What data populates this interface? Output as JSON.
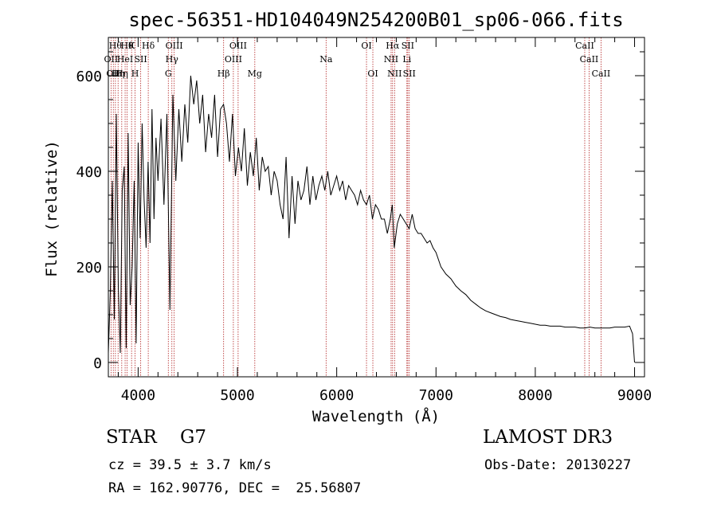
{
  "chart_data": {
    "type": "line",
    "title": "spec-56351-HD104049N254200B01_sp06-066.fits",
    "xlabel": "Wavelength (Å)",
    "ylabel": "Flux (relative)",
    "xlim": [
      3700,
      9100
    ],
    "ylim": [
      -30,
      680
    ],
    "x_ticks": [
      4000,
      5000,
      6000,
      7000,
      8000,
      9000
    ],
    "y_ticks": [
      0,
      200,
      400,
      600
    ],
    "series": [
      {
        "name": "flux",
        "x": [
          3700,
          3720,
          3740,
          3760,
          3780,
          3800,
          3820,
          3840,
          3860,
          3880,
          3900,
          3920,
          3940,
          3960,
          3980,
          4000,
          4020,
          4040,
          4060,
          4080,
          4100,
          4120,
          4140,
          4160,
          4180,
          4200,
          4230,
          4260,
          4290,
          4320,
          4350,
          4380,
          4410,
          4440,
          4470,
          4500,
          4530,
          4560,
          4590,
          4620,
          4650,
          4680,
          4710,
          4740,
          4770,
          4800,
          4830,
          4860,
          4890,
          4920,
          4950,
          4980,
          5010,
          5040,
          5070,
          5100,
          5130,
          5160,
          5190,
          5220,
          5250,
          5280,
          5310,
          5340,
          5370,
          5400,
          5430,
          5460,
          5490,
          5520,
          5550,
          5580,
          5610,
          5640,
          5670,
          5700,
          5730,
          5760,
          5790,
          5820,
          5850,
          5880,
          5910,
          5940,
          5970,
          6000,
          6030,
          6060,
          6090,
          6120,
          6150,
          6180,
          6210,
          6240,
          6270,
          6300,
          6330,
          6360,
          6390,
          6420,
          6450,
          6480,
          6510,
          6540,
          6560,
          6580,
          6610,
          6640,
          6670,
          6700,
          6730,
          6760,
          6790,
          6820,
          6850,
          6880,
          6910,
          6940,
          6970,
          7000,
          7050,
          7100,
          7150,
          7200,
          7250,
          7300,
          7350,
          7400,
          7450,
          7500,
          7550,
          7600,
          7650,
          7700,
          7750,
          7800,
          7850,
          7900,
          7950,
          8000,
          8050,
          8100,
          8150,
          8200,
          8250,
          8300,
          8350,
          8400,
          8450,
          8500,
          8550,
          8600,
          8650,
          8700,
          8750,
          8800,
          8850,
          8900,
          8950,
          8980,
          9000
        ],
        "y": [
          20,
          150,
          380,
          90,
          520,
          160,
          20,
          360,
          410,
          30,
          480,
          120,
          200,
          380,
          40,
          460,
          260,
          500,
          340,
          240,
          420,
          250,
          530,
          300,
          470,
          380,
          510,
          330,
          520,
          110,
          560,
          380,
          530,
          420,
          540,
          460,
          600,
          540,
          590,
          500,
          560,
          440,
          520,
          470,
          560,
          430,
          530,
          540,
          500,
          420,
          520,
          390,
          450,
          400,
          490,
          370,
          440,
          390,
          470,
          360,
          430,
          400,
          410,
          350,
          400,
          380,
          330,
          300,
          430,
          260,
          390,
          290,
          380,
          340,
          360,
          410,
          330,
          390,
          340,
          370,
          390,
          360,
          400,
          350,
          370,
          390,
          360,
          380,
          340,
          370,
          360,
          350,
          330,
          360,
          340,
          330,
          350,
          300,
          330,
          320,
          300,
          300,
          270,
          300,
          330,
          240,
          290,
          310,
          300,
          290,
          280,
          310,
          280,
          270,
          270,
          260,
          250,
          255,
          240,
          230,
          200,
          185,
          175,
          160,
          150,
          142,
          130,
          122,
          114,
          108,
          104,
          100,
          96,
          94,
          90,
          88,
          86,
          84,
          82,
          80,
          78,
          78,
          76,
          76,
          76,
          74,
          74,
          74,
          72,
          72,
          74,
          72,
          72,
          72,
          72,
          74,
          74,
          74,
          76,
          60,
          0
        ]
      }
    ],
    "line_markers": [
      {
        "wavelength": 3727,
        "label": "OII",
        "row": 2
      },
      {
        "wavelength": 3750,
        "label": "OII",
        "row": 3
      },
      {
        "wavelength": 3771,
        "label": "Hθ",
        "row": 1
      },
      {
        "wavelength": 3798,
        "label": "Hη",
        "row": 3
      },
      {
        "wavelength": 3835,
        "label": "Hη",
        "row": 3
      },
      {
        "wavelength": 3869,
        "label": "HeI",
        "row": 2
      },
      {
        "wavelength": 3889,
        "label": "Hθ",
        "row": 1
      },
      {
        "wavelength": 3934,
        "label": "K",
        "row": 1
      },
      {
        "wavelength": 3969,
        "label": "H",
        "row": 3
      },
      {
        "wavelength": 4026,
        "label": "SII",
        "row": 2
      },
      {
        "wavelength": 4102,
        "label": "Hδ",
        "row": 1
      },
      {
        "wavelength": 4304,
        "label": "G",
        "row": 3
      },
      {
        "wavelength": 4340,
        "label": "Hγ",
        "row": 2
      },
      {
        "wavelength": 4363,
        "label": "OIII",
        "row": 1
      },
      {
        "wavelength": 4861,
        "label": "Hβ",
        "row": 3
      },
      {
        "wavelength": 4959,
        "label": "OIII",
        "row": 2
      },
      {
        "wavelength": 5007,
        "label": "OIII",
        "row": 1
      },
      {
        "wavelength": 5175,
        "label": "Mg",
        "row": 3
      },
      {
        "wavelength": 5893,
        "label": "Na",
        "row": 2
      },
      {
        "wavelength": 6300,
        "label": "OI",
        "row": 1
      },
      {
        "wavelength": 6364,
        "label": "OI",
        "row": 3
      },
      {
        "wavelength": 6548,
        "label": "NII",
        "row": 2
      },
      {
        "wavelength": 6563,
        "label": "Hα",
        "row": 1
      },
      {
        "wavelength": 6583,
        "label": "NII",
        "row": 3
      },
      {
        "wavelength": 6707,
        "label": "Li",
        "row": 2
      },
      {
        "wavelength": 6716,
        "label": "SII",
        "row": 1
      },
      {
        "wavelength": 6731,
        "label": "SII",
        "row": 3
      },
      {
        "wavelength": 8498,
        "label": "CaII",
        "row": 1
      },
      {
        "wavelength": 8542,
        "label": "CaII",
        "row": 2
      },
      {
        "wavelength": 8662,
        "label": "CaII",
        "row": 3
      }
    ],
    "colors": {
      "spectrum": "#000000",
      "markers": "#b22222",
      "axes": "#000000"
    }
  },
  "info": {
    "object_class": "STAR    G7",
    "survey": "LAMOST DR3",
    "redshift": "cz = 39.5 ± 3.7 km/s",
    "obs_date": "Obs-Date: 20130227",
    "coordinates": "RA = 162.90776, DEC =  25.56807"
  }
}
